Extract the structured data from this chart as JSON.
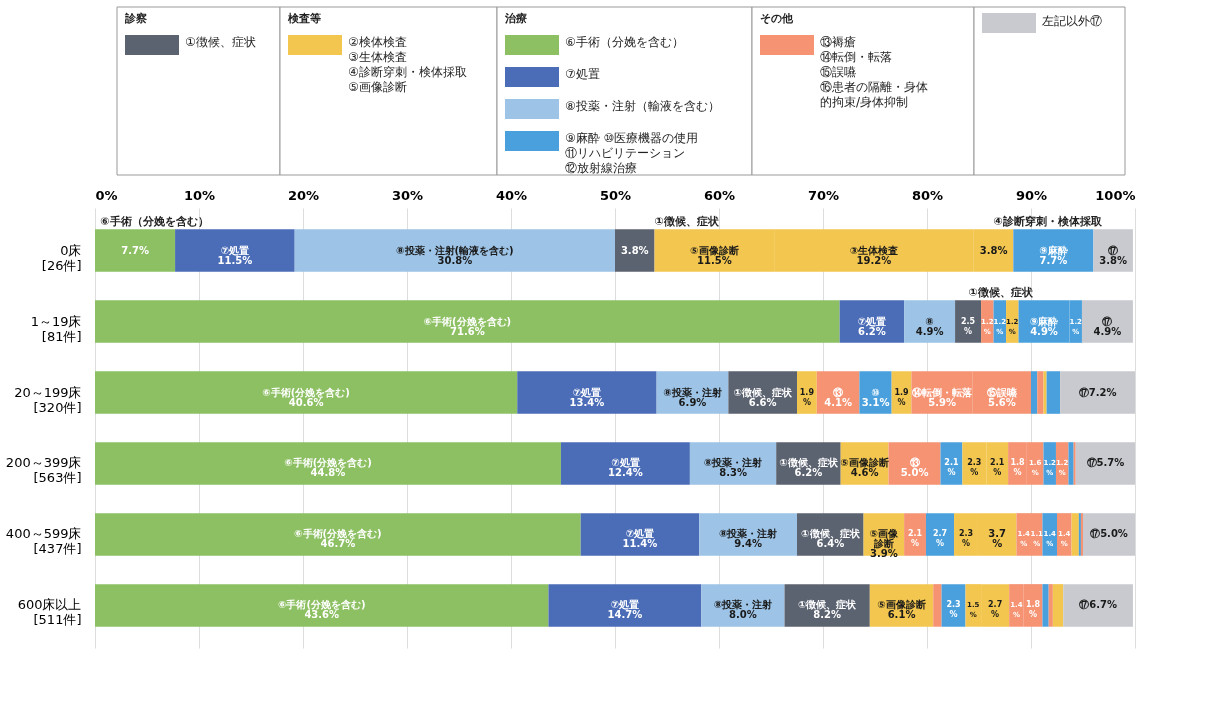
{
  "chart_data": {
    "type": "bar",
    "orientation": "horizontal",
    "stacked": true,
    "categories": [
      "0床\n[26件]",
      "1～19床\n[81件]",
      "20～199床\n[320件]",
      "200～399床\n[563件]",
      "400～599床\n[437件]",
      "600床以上\n[511件]"
    ],
    "xlim": [
      0,
      100
    ],
    "xticks": [
      {
        "value": 0,
        "label": "0%"
      },
      {
        "value": 10,
        "label": "10%"
      },
      {
        "value": 20,
        "label": "20%"
      },
      {
        "value": 30,
        "label": "30%"
      },
      {
        "value": 40,
        "label": "40%"
      },
      {
        "value": 50,
        "label": "50%"
      },
      {
        "value": 60,
        "label": "60%"
      },
      {
        "value": 70,
        "label": "70%"
      },
      {
        "value": 80,
        "label": "80%"
      },
      {
        "value": 90,
        "label": "90%"
      },
      {
        "value": 100,
        "label": "100%"
      }
    ],
    "grid": "x",
    "legend": "top",
    "series": [
      {
        "values": [
          7.7,
          71.6,
          40.6,
          44.8,
          46.7,
          43.6
        ],
        "colors": [
          "#8dc063",
          "#8dc063",
          "#8dc063",
          "#8dc063",
          "#8dc063",
          "#8dc063"
        ],
        "value_labels": [
          "7.7%",
          "⑥手術(分娩を含む)\n71.6%",
          "⑥手術(分娩を含む)\n40.6%",
          "⑥手術(分娩を含む)\n44.8%",
          "⑥手術(分娩を含む)\n46.7%",
          "⑥手術(分娩を含む)\n43.6%"
        ]
      },
      {
        "values": [
          11.5,
          6.2,
          13.4,
          12.4,
          11.4,
          14.7
        ],
        "colors": [
          "#4b6cb7",
          "#4b6cb7",
          "#4b6cb7",
          "#4b6cb7",
          "#4b6cb7",
          "#4b6cb7"
        ],
        "value_labels": [
          "⑦処置\n11.5%",
          "⑦処置\n6.2%",
          "⑦処置\n13.4%",
          "⑦処置\n12.4%",
          "⑦処置\n11.4%",
          "⑦処置\n14.7%"
        ]
      },
      {
        "values": [
          30.8,
          4.9,
          6.9,
          8.3,
          9.4,
          8.0
        ],
        "colors": [
          "#9dc3e6",
          "#9dc3e6",
          "#9dc3e6",
          "#9dc3e6",
          "#9dc3e6",
          "#9dc3e6"
        ],
        "value_labels": [
          "⑧投薬・注射(輸液を含む)\n30.8%",
          "⑧\n4.9%",
          "⑧投薬・注射\n6.9%",
          "⑧投薬・注射\n8.3%",
          "⑧投薬・注射\n9.4%",
          "⑧投薬・注射\n8.0%"
        ]
      },
      {
        "values": [
          3.8,
          2.5,
          6.6,
          6.2,
          6.4,
          8.2
        ],
        "colors": [
          "#5b6270",
          "#5b6270",
          "#5b6270",
          "#5b6270",
          "#5b6270",
          "#5b6270"
        ],
        "value_labels": [
          "3.8%",
          "2.5\n%",
          "①徴候、症状\n6.6%",
          "①徴候、症状\n6.2%",
          "①徴候、症状\n6.4%",
          "①徴候、症状\n8.2%"
        ]
      },
      {
        "values": [
          11.5,
          1.2,
          1.9,
          4.6,
          3.9,
          6.1
        ],
        "colors": [
          "#f3c64f",
          "#f59373",
          "#f3c64f",
          "#f3c64f",
          "#f3c64f",
          "#f3c64f"
        ],
        "value_labels": [
          "⑤画像診断\n11.5%",
          "1.2\n%",
          "1.9\n%",
          "⑤画像診断\n4.6%",
          "⑤画像診断\n3.9%",
          "⑤画像診断\n6.1%"
        ]
      },
      {
        "values": [
          19.2,
          1.2,
          4.1,
          5.0,
          2.1,
          0.8
        ],
        "colors": [
          "#f3c64f",
          "#4aa0dc",
          "#f59373",
          "#f59373",
          "#f59373",
          "#f59373"
        ],
        "value_labels": [
          "③生体検査\n19.2%",
          "1.2\n%",
          "⑬\n4.1%",
          "⑬\n5.0%",
          "2.1\n%",
          null
        ]
      },
      {
        "values": [
          3.8,
          1.2,
          3.1,
          2.1,
          2.7,
          2.3
        ],
        "colors": [
          "#f3c64f",
          "#f3c64f",
          "#4aa0dc",
          "#4aa0dc",
          "#4aa0dc",
          "#4aa0dc"
        ],
        "value_labels": [
          "3.8%",
          "1.2\n%",
          "⑩\n3.1%",
          "2.1\n%",
          "2.7\n%",
          "2.3\n%"
        ]
      },
      {
        "values": [
          7.7,
          4.9,
          1.9,
          2.3,
          2.3,
          1.5
        ],
        "colors": [
          "#4aa0dc",
          "#4aa0dc",
          "#f3c64f",
          "#f3c64f",
          "#f3c64f",
          "#f3c64f"
        ],
        "value_labels": [
          "⑨麻酔\n7.7%",
          "⑨麻酔\n4.9%",
          "1.9\n%",
          "2.3\n%",
          "2.3\n%",
          "1.5\n%"
        ]
      },
      {
        "values": [
          3.8,
          1.2,
          5.9,
          2.1,
          3.7,
          2.7
        ],
        "colors": [
          "#c8cacf",
          "#4aa0dc",
          "#f59373",
          "#f3c64f",
          "#f3c64f",
          "#f3c64f"
        ],
        "value_labels": [
          "⑰\n3.8%",
          "1.2\n%",
          "⑭転倒・転落\n5.9%",
          "2.1\n%",
          "3.7\n%",
          "2.7\n%"
        ]
      },
      {
        "values": [
          null,
          4.9,
          5.6,
          1.8,
          1.4,
          1.4
        ],
        "colors": [
          null,
          "#c8cacf",
          "#f59373",
          "#f59373",
          "#f59373",
          "#f59373"
        ],
        "value_labels": [
          null,
          "⑰\n4.9%",
          "⑮誤嚥\n5.6%",
          "1.8\n%",
          "1.4\n%",
          "1.4\n%"
        ]
      },
      {
        "values": [
          null,
          null,
          0.6,
          1.6,
          1.1,
          1.8
        ],
        "colors": [
          null,
          null,
          "#4aa0dc",
          "#f59373",
          "#f59373",
          "#f59373"
        ],
        "value_labels": [
          null,
          null,
          null,
          "1.6\n%",
          "1.1\n%",
          "1.8\n%"
        ]
      },
      {
        "values": [
          null,
          null,
          0.6,
          1.2,
          1.4,
          0.6
        ],
        "colors": [
          null,
          null,
          "#f59373",
          "#4aa0dc",
          "#4aa0dc",
          "#4aa0dc"
        ],
        "value_labels": [
          null,
          null,
          null,
          "1.2\n%",
          "1.4\n%",
          null
        ]
      },
      {
        "values": [
          null,
          null,
          0.3,
          1.2,
          1.4,
          0.4
        ],
        "colors": [
          null,
          null,
          "#f3c64f",
          "#f59373",
          "#f59373",
          "#f59373"
        ],
        "value_labels": [
          null,
          null,
          null,
          "1.2\n%",
          "1.4\n%",
          null
        ]
      },
      {
        "values": [
          null,
          null,
          1.3,
          0.5,
          0.7,
          1.0
        ],
        "colors": [
          null,
          null,
          "#4aa0dc",
          "#4aa0dc",
          "#f3c64f",
          "#f3c64f"
        ]
      },
      {
        "values": [
          null,
          null,
          7.2,
          0.2,
          0.2,
          6.7
        ],
        "colors": [
          null,
          null,
          "#c8cacf",
          "#f59373",
          "#4aa0dc",
          "#c8cacf"
        ],
        "value_labels": [
          null,
          null,
          "⑰7.2%",
          null,
          null,
          "⑰6.7%"
        ]
      },
      {
        "values": [
          null,
          null,
          null,
          5.7,
          0.2,
          null
        ],
        "colors": [
          null,
          null,
          null,
          "#c8cacf",
          "#f59373",
          null
        ],
        "value_labels": [
          null,
          null,
          null,
          "⑰5.7%",
          null,
          null
        ]
      },
      {
        "values": [
          null,
          null,
          null,
          null,
          5.0,
          null
        ],
        "colors": [
          null,
          null,
          null,
          null,
          "#c8cacf",
          null
        ],
        "value_labels": [
          null,
          null,
          null,
          null,
          "⑰5.0%",
          null
        ]
      },
      {
        "name": "①徴候、症状",
        "color": "#5b6270",
        "values": [
          null,
          null,
          null,
          null,
          null,
          null
        ]
      },
      {
        "name": "②検体検査\n③生体検査\n④診断穿刺・検体採取\n⑤画像診断",
        "color": "#f3c64f",
        "values": [
          null,
          null,
          null,
          null,
          null,
          null
        ]
      },
      {
        "name": "⑥手術（分娩を含む）",
        "color": "#8dc063",
        "values": [
          null,
          null,
          null,
          null,
          null,
          null
        ]
      },
      {
        "name": "⑦処置",
        "color": "#4b6cb7",
        "values": [
          null,
          null,
          null,
          null,
          null,
          null
        ]
      },
      {
        "name": "⑧投薬・注射（輸液を含む）",
        "color": "#9dc3e6",
        "values": [
          null,
          null,
          null,
          null,
          null,
          null
        ]
      },
      {
        "name": "⑨麻酔 ⑩医療機器の使用\n⑪リハビリテーション\n⑫放射線治療",
        "color": "#4aa0dc",
        "values": [
          null,
          null,
          null,
          null,
          null,
          null
        ]
      },
      {
        "name": "⑬褥瘡\n⑭転倒・転落\n⑮誤嚥\n⑯患者の隔離・身体的拘束/身体抑制",
        "color": "#f59373",
        "values": [
          null,
          null,
          null,
          null,
          null,
          null
        ]
      },
      {
        "name": "左記以外⑰",
        "color": "#c8cacf",
        "values": [
          null,
          null,
          null,
          null,
          null,
          null
        ]
      }
    ],
    "annotations": [
      "診察",
      "検査等",
      "治療",
      "その他",
      "⑥手術（分娩を含む）",
      "①徴候、症状",
      "④診断穿刺・検体採取",
      "①徴候、症状"
    ]
  }
}
